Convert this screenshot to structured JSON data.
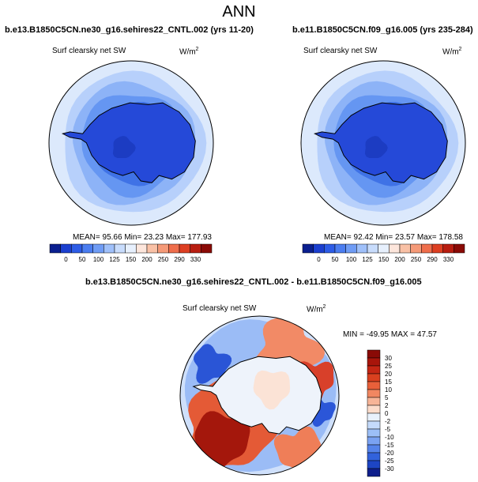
{
  "page": {
    "title": "ANN"
  },
  "panels": [
    {
      "title": "b.e13.B1850C5CN.ne30_g16.sehires22_CNTL.002 (yrs 11-20)",
      "variable": "Surf clearsky net SW",
      "units_base": "W/m",
      "units_exp": "2",
      "stats": "MEAN=  95.66  Min=  23.23  Max= 177.93",
      "colorbar": {
        "labels": [
          "0",
          "50",
          "100",
          "125",
          "150",
          "200",
          "250",
          "290",
          "330"
        ],
        "colors": [
          "#0a1f8f",
          "#1b3fcf",
          "#2d5ce6",
          "#4b7df0",
          "#6f9cf5",
          "#9fc0fa",
          "#c8dcfc",
          "#e7f0fd",
          "#fde6dc",
          "#f9c1a6",
          "#f59a78",
          "#ef6e4c",
          "#dd3f22",
          "#b81d10",
          "#8a0a06"
        ]
      }
    },
    {
      "title": "b.e11.B1850C5CN.f09_g16.005 (yrs 235-284)",
      "variable": "Surf clearsky net SW",
      "units_base": "W/m",
      "units_exp": "2",
      "stats": "MEAN=  92.42  Min=  23.57  Max= 178.58",
      "colorbar": {
        "labels": [
          "0",
          "50",
          "100",
          "125",
          "150",
          "200",
          "250",
          "290",
          "330"
        ],
        "colors": [
          "#0a1f8f",
          "#1b3fcf",
          "#2d5ce6",
          "#4b7df0",
          "#6f9cf5",
          "#9fc0fa",
          "#c8dcfc",
          "#e7f0fd",
          "#fde6dc",
          "#f9c1a6",
          "#f59a78",
          "#ef6e4c",
          "#dd3f22",
          "#b81d10",
          "#8a0a06"
        ]
      }
    },
    {
      "title": "b.e13.B1850C5CN.ne30_g16.sehires22_CNTL.002 - b.e11.B1850C5CN.f09_g16.005",
      "variable": "Surf clearsky net SW",
      "units_base": "W/m",
      "units_exp": "2",
      "stats": "MIN = -49.95 MAX =  47.57",
      "colorbar": {
        "labels": [
          "30",
          "25",
          "20",
          "15",
          "10",
          "5",
          "2",
          "0",
          "-2",
          "-5",
          "-10",
          "-15",
          "-20",
          "-25",
          "-30"
        ],
        "colors": [
          "#8a0a06",
          "#a8150b",
          "#c42614",
          "#d9401f",
          "#e8603a",
          "#f18761",
          "#f7b497",
          "#fcdccb",
          "#e9f2fd",
          "#c4dafb",
          "#9cbff7",
          "#7aa2f2",
          "#5583ea",
          "#3262dc",
          "#1d45c4",
          "#0f1f8c"
        ]
      }
    }
  ]
}
